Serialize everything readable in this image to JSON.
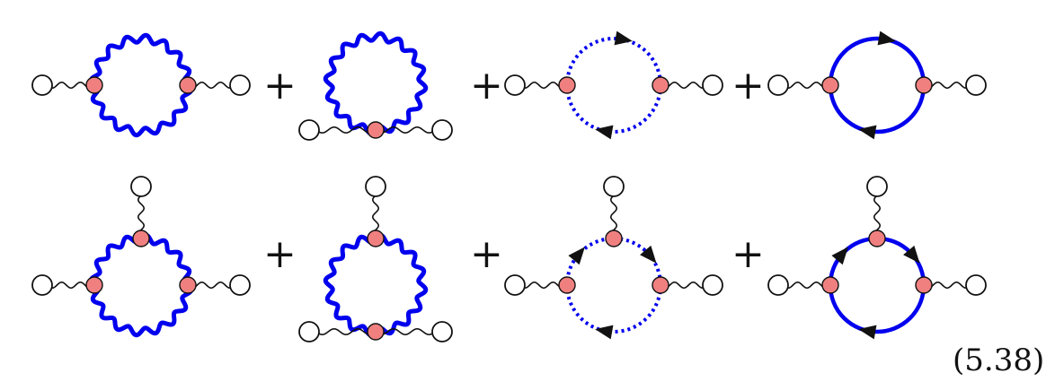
{
  "equation": {
    "number": "(5.38)",
    "operator": "+"
  },
  "colors": {
    "loop": "#0000ee",
    "vertex_fill": "#f08080",
    "external_line": "#111111",
    "external_circle": "#ffffff"
  },
  "rows": [
    {
      "diagrams": [
        {
          "loop": "wavy",
          "vertices": "two-side"
        },
        {
          "loop": "wavy",
          "vertices": "bottom-tadpole"
        },
        {
          "loop": "dotted",
          "vertices": "two-side",
          "arrows": [
            "top-right",
            "bottom-left"
          ]
        },
        {
          "loop": "solid",
          "vertices": "two-side",
          "arrows": [
            "top-right",
            "bottom-left"
          ]
        }
      ]
    },
    {
      "diagrams": [
        {
          "loop": "wavy",
          "vertices": "three"
        },
        {
          "loop": "wavy",
          "vertices": "top-and-bottom"
        },
        {
          "loop": "dotted",
          "vertices": "three",
          "arrows": [
            "upper-left",
            "upper-right",
            "bottom-left"
          ]
        },
        {
          "loop": "solid",
          "vertices": "three",
          "arrows": [
            "upper-left",
            "upper-right",
            "bottom-left"
          ]
        }
      ]
    }
  ]
}
